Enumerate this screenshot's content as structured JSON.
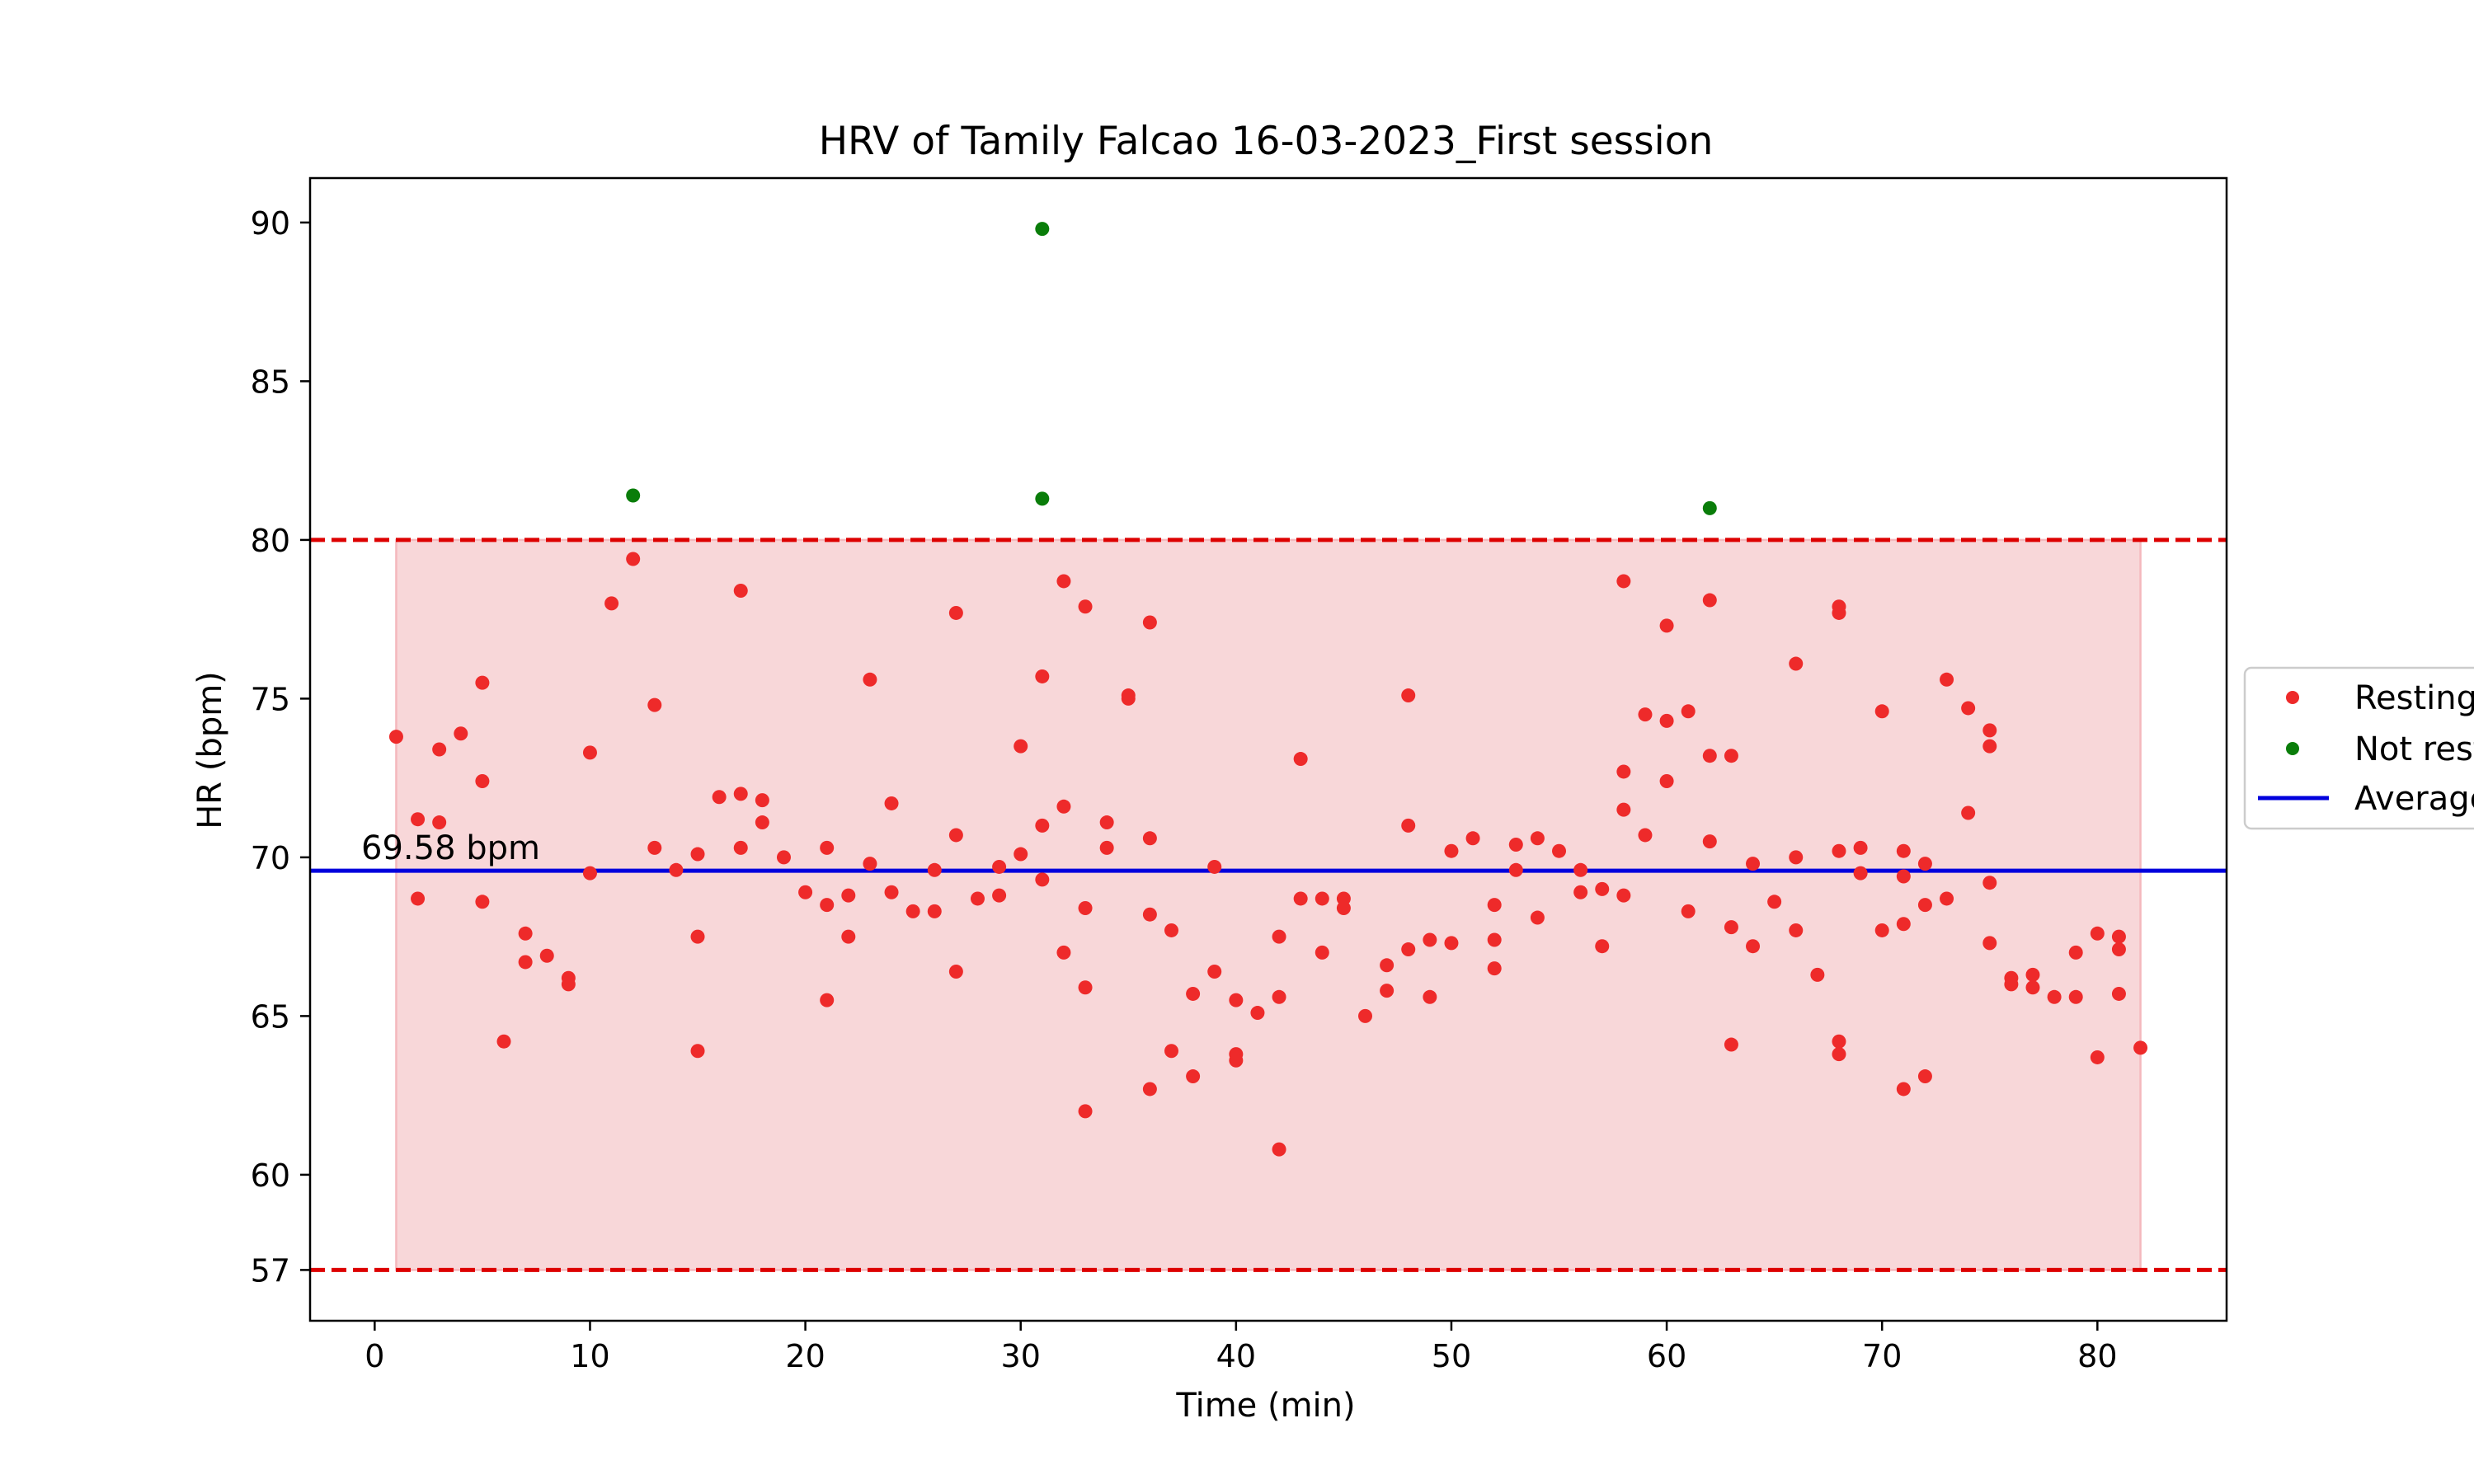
{
  "chart_data": {
    "type": "scatter",
    "title": "HRV of Tamily Falcao 16-03-2023_First session",
    "xlabel": "Time (min)",
    "ylabel": "HR (bpm)",
    "xlim": [
      -3,
      86
    ],
    "ylim": [
      55.4,
      91.4
    ],
    "xticks": [
      0,
      10,
      20,
      30,
      40,
      50,
      60,
      70,
      80
    ],
    "yticks": [
      57,
      60,
      65,
      70,
      75,
      80,
      85,
      90
    ],
    "grid": false,
    "legend_position": "center right",
    "average_label": "69.58 bpm",
    "average": 69.58,
    "band": {
      "x": [
        1,
        82
      ],
      "y": [
        57,
        80
      ],
      "color": "#f8d7d9"
    },
    "thresholds": [
      80,
      57
    ],
    "colors": {
      "resting": "#ee2a2a",
      "not_resting": "#0a7d0a",
      "average": "#0000dd",
      "threshold": "#dd0000"
    },
    "series": [
      {
        "name": "Resting",
        "points": [
          [
            1,
            73.8
          ],
          [
            2,
            71.2
          ],
          [
            2,
            68.7
          ],
          [
            3,
            73.4
          ],
          [
            3,
            71.1
          ],
          [
            4,
            73.9
          ],
          [
            5,
            75.5
          ],
          [
            5,
            72.4
          ],
          [
            5,
            68.6
          ],
          [
            6,
            64.2
          ],
          [
            7,
            67.6
          ],
          [
            7,
            66.7
          ],
          [
            8,
            66.9
          ],
          [
            9,
            66.2
          ],
          [
            9,
            66.0
          ],
          [
            10,
            73.3
          ],
          [
            10,
            69.5
          ],
          [
            11,
            78.0
          ],
          [
            12,
            79.4
          ],
          [
            13,
            74.8
          ],
          [
            13,
            70.3
          ],
          [
            14,
            69.6
          ],
          [
            15,
            70.1
          ],
          [
            15,
            67.5
          ],
          [
            15,
            63.9
          ],
          [
            16,
            71.9
          ],
          [
            17,
            78.4
          ],
          [
            17,
            72.0
          ],
          [
            17,
            70.3
          ],
          [
            18,
            71.8
          ],
          [
            18,
            71.1
          ],
          [
            19,
            70.0
          ],
          [
            20,
            68.9
          ],
          [
            21,
            70.3
          ],
          [
            21,
            68.5
          ],
          [
            21,
            65.5
          ],
          [
            22,
            68.8
          ],
          [
            22,
            67.5
          ],
          [
            23,
            75.6
          ],
          [
            23,
            69.8
          ],
          [
            24,
            71.7
          ],
          [
            24,
            68.9
          ],
          [
            25,
            68.3
          ],
          [
            26,
            69.6
          ],
          [
            26,
            68.3
          ],
          [
            27,
            77.7
          ],
          [
            27,
            70.7
          ],
          [
            27,
            66.4
          ],
          [
            28,
            68.7
          ],
          [
            29,
            69.7
          ],
          [
            29,
            68.8
          ],
          [
            30,
            73.5
          ],
          [
            30,
            70.1
          ],
          [
            31,
            75.7
          ],
          [
            31,
            71.0
          ],
          [
            31,
            69.3
          ],
          [
            32,
            78.7
          ],
          [
            32,
            71.6
          ],
          [
            32,
            67.0
          ],
          [
            33,
            77.9
          ],
          [
            33,
            68.4
          ],
          [
            33,
            65.9
          ],
          [
            33,
            62.0
          ],
          [
            34,
            71.1
          ],
          [
            34,
            70.3
          ],
          [
            35,
            75.1
          ],
          [
            35,
            75.0
          ],
          [
            36,
            77.4
          ],
          [
            36,
            70.6
          ],
          [
            36,
            68.2
          ],
          [
            36,
            62.7
          ],
          [
            37,
            67.7
          ],
          [
            37,
            63.9
          ],
          [
            38,
            65.7
          ],
          [
            38,
            63.1
          ],
          [
            39,
            69.7
          ],
          [
            39,
            66.4
          ],
          [
            40,
            65.5
          ],
          [
            40,
            63.8
          ],
          [
            40,
            63.6
          ],
          [
            41,
            65.1
          ],
          [
            42,
            67.5
          ],
          [
            42,
            65.6
          ],
          [
            42,
            60.8
          ],
          [
            43,
            73.1
          ],
          [
            43,
            68.7
          ],
          [
            44,
            68.7
          ],
          [
            44,
            67.0
          ],
          [
            45,
            68.7
          ],
          [
            45,
            68.4
          ],
          [
            46,
            65.0
          ],
          [
            47,
            66.6
          ],
          [
            47,
            65.8
          ],
          [
            48,
            75.1
          ],
          [
            48,
            71.0
          ],
          [
            48,
            67.1
          ],
          [
            49,
            67.4
          ],
          [
            49,
            65.6
          ],
          [
            50,
            70.2
          ],
          [
            50,
            67.3
          ],
          [
            51,
            70.6
          ],
          [
            52,
            68.5
          ],
          [
            52,
            67.4
          ],
          [
            52,
            66.5
          ],
          [
            53,
            70.4
          ],
          [
            53,
            69.6
          ],
          [
            54,
            70.6
          ],
          [
            54,
            68.1
          ],
          [
            55,
            70.2
          ],
          [
            56,
            69.6
          ],
          [
            56,
            68.9
          ],
          [
            57,
            69.0
          ],
          [
            57,
            67.2
          ],
          [
            58,
            78.7
          ],
          [
            58,
            72.7
          ],
          [
            58,
            71.5
          ],
          [
            58,
            68.8
          ],
          [
            59,
            74.5
          ],
          [
            59,
            70.7
          ],
          [
            60,
            77.3
          ],
          [
            60,
            74.3
          ],
          [
            60,
            72.4
          ],
          [
            61,
            74.6
          ],
          [
            61,
            68.3
          ],
          [
            62,
            78.1
          ],
          [
            62,
            73.2
          ],
          [
            62,
            70.5
          ],
          [
            63,
            73.2
          ],
          [
            63,
            67.8
          ],
          [
            63,
            64.1
          ],
          [
            64,
            69.8
          ],
          [
            64,
            67.2
          ],
          [
            65,
            68.6
          ],
          [
            66,
            70.0
          ],
          [
            66,
            67.7
          ],
          [
            66,
            76.1
          ],
          [
            67,
            66.3
          ],
          [
            68,
            77.9
          ],
          [
            68,
            77.7
          ],
          [
            68,
            70.2
          ],
          [
            68,
            64.2
          ],
          [
            68,
            63.8
          ],
          [
            69,
            70.3
          ],
          [
            69,
            69.5
          ],
          [
            70,
            74.6
          ],
          [
            70,
            67.7
          ],
          [
            71,
            70.2
          ],
          [
            71,
            69.4
          ],
          [
            71,
            67.9
          ],
          [
            71,
            62.7
          ],
          [
            72,
            69.8
          ],
          [
            72,
            68.5
          ],
          [
            72,
            63.1
          ],
          [
            73,
            75.6
          ],
          [
            73,
            68.7
          ],
          [
            74,
            74.7
          ],
          [
            74,
            71.4
          ],
          [
            75,
            74.0
          ],
          [
            75,
            73.5
          ],
          [
            75,
            69.2
          ],
          [
            75,
            67.3
          ],
          [
            76,
            66.2
          ],
          [
            76,
            66.0
          ],
          [
            77,
            66.3
          ],
          [
            77,
            65.9
          ],
          [
            78,
            65.6
          ],
          [
            79,
            67.0
          ],
          [
            79,
            65.6
          ],
          [
            80,
            67.6
          ],
          [
            80,
            63.7
          ],
          [
            81,
            67.5
          ],
          [
            81,
            67.1
          ],
          [
            81,
            65.7
          ],
          [
            82,
            64.0
          ]
        ]
      },
      {
        "name": "Not resting",
        "points": [
          [
            12,
            81.4
          ],
          [
            31,
            89.8
          ],
          [
            31,
            81.3
          ],
          [
            62,
            81.0
          ]
        ]
      },
      {
        "name": "Average",
        "y": 69.58
      }
    ]
  }
}
